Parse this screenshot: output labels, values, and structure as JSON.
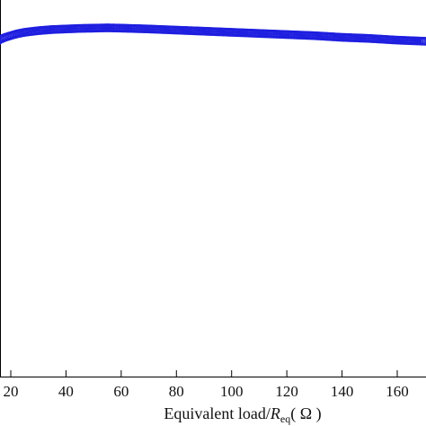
{
  "chart_data": {
    "type": "scatter",
    "title": "",
    "xlabel": {
      "prefix": "Equivalent load/",
      "symbol": "R",
      "subscript": "eq",
      "unit": "( Ω )"
    },
    "ylabel": "",
    "xlim": [
      12,
      172
    ],
    "ylim": [
      0,
      1
    ],
    "xticks": [
      20,
      40,
      60,
      80,
      100,
      120,
      140,
      160
    ],
    "xtick_labels": [
      "20",
      "40",
      "60",
      "80",
      "100",
      "120",
      "140",
      "160"
    ],
    "grid": false,
    "marker": "circle",
    "color": "#1f1fe0",
    "series": [
      {
        "x": [
          12,
          13,
          14,
          15,
          16,
          18,
          20,
          22,
          25,
          30,
          35,
          40,
          45,
          50,
          55,
          60,
          70,
          80,
          90,
          100,
          110,
          120,
          130,
          140,
          150,
          160,
          170
        ],
        "y": [
          0.915,
          0.928,
          0.935,
          0.94,
          0.944,
          0.948,
          0.951,
          0.954,
          0.957,
          0.96,
          0.962,
          0.963,
          0.964,
          0.9645,
          0.965,
          0.9645,
          0.963,
          0.961,
          0.959,
          0.957,
          0.955,
          0.953,
          0.951,
          0.948,
          0.946,
          0.943,
          0.941
        ]
      }
    ]
  }
}
